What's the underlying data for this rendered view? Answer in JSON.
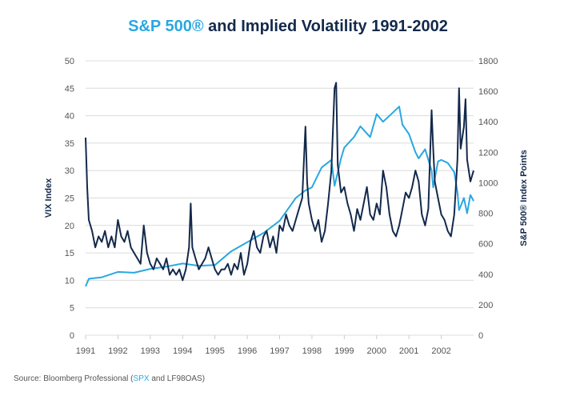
{
  "chart_data": {
    "type": "line",
    "title_highlight": "S&P 500®",
    "title_rest": " and Implied Volatility 1991-2002",
    "ylabel": "VIX Index",
    "y2label": "S&P 500® Index Points",
    "ylim": [
      0,
      50
    ],
    "y2lim": [
      0,
      1800
    ],
    "yticks": [
      0,
      5,
      10,
      15,
      20,
      25,
      30,
      35,
      40,
      45,
      50
    ],
    "y2ticks": [
      0,
      200,
      400,
      600,
      800,
      1000,
      1200,
      1400,
      1600,
      1800
    ],
    "xlim": [
      1991,
      2003
    ],
    "xticks": [
      "1991",
      "1992",
      "1993",
      "1994",
      "1995",
      "1996",
      "1997",
      "1998",
      "1999",
      "2000",
      "2001",
      "2002"
    ],
    "grid": true,
    "colors": {
      "vix": "#13294b",
      "spx": "#29a8e0"
    },
    "series": [
      {
        "name": "VIX",
        "axis": "left",
        "points": [
          [
            1991.0,
            36
          ],
          [
            1991.05,
            27
          ],
          [
            1991.1,
            21
          ],
          [
            1991.2,
            19
          ],
          [
            1991.3,
            16
          ],
          [
            1991.4,
            18
          ],
          [
            1991.5,
            17
          ],
          [
            1991.6,
            19
          ],
          [
            1991.7,
            16
          ],
          [
            1991.8,
            18
          ],
          [
            1991.9,
            16
          ],
          [
            1992.0,
            21
          ],
          [
            1992.1,
            18
          ],
          [
            1992.2,
            17
          ],
          [
            1992.3,
            19
          ],
          [
            1992.4,
            16
          ],
          [
            1992.5,
            15
          ],
          [
            1992.6,
            14
          ],
          [
            1992.7,
            13
          ],
          [
            1992.8,
            20
          ],
          [
            1992.9,
            15
          ],
          [
            1993.0,
            13
          ],
          [
            1993.1,
            12
          ],
          [
            1993.2,
            14
          ],
          [
            1993.3,
            13
          ],
          [
            1993.4,
            12
          ],
          [
            1993.5,
            14
          ],
          [
            1993.6,
            11
          ],
          [
            1993.7,
            12
          ],
          [
            1993.8,
            11
          ],
          [
            1993.9,
            12
          ],
          [
            1994.0,
            10
          ],
          [
            1994.1,
            12
          ],
          [
            1994.2,
            16
          ],
          [
            1994.25,
            24
          ],
          [
            1994.3,
            16
          ],
          [
            1994.4,
            14
          ],
          [
            1994.5,
            12
          ],
          [
            1994.6,
            13
          ],
          [
            1994.7,
            14
          ],
          [
            1994.8,
            16
          ],
          [
            1994.9,
            14
          ],
          [
            1995.0,
            12
          ],
          [
            1995.1,
            11
          ],
          [
            1995.2,
            12
          ],
          [
            1995.3,
            12
          ],
          [
            1995.4,
            13
          ],
          [
            1995.5,
            11
          ],
          [
            1995.6,
            13
          ],
          [
            1995.7,
            12
          ],
          [
            1995.8,
            15
          ],
          [
            1995.9,
            11
          ],
          [
            1996.0,
            13
          ],
          [
            1996.1,
            17
          ],
          [
            1996.2,
            19
          ],
          [
            1996.3,
            16
          ],
          [
            1996.4,
            15
          ],
          [
            1996.5,
            18
          ],
          [
            1996.6,
            19
          ],
          [
            1996.7,
            16
          ],
          [
            1996.8,
            18
          ],
          [
            1996.9,
            15
          ],
          [
            1997.0,
            20
          ],
          [
            1997.1,
            19
          ],
          [
            1997.2,
            22
          ],
          [
            1997.3,
            20
          ],
          [
            1997.4,
            19
          ],
          [
            1997.5,
            21
          ],
          [
            1997.6,
            23
          ],
          [
            1997.7,
            25
          ],
          [
            1997.8,
            38
          ],
          [
            1997.85,
            28
          ],
          [
            1997.9,
            24
          ],
          [
            1998.0,
            21
          ],
          [
            1998.1,
            19
          ],
          [
            1998.2,
            21
          ],
          [
            1998.3,
            17
          ],
          [
            1998.4,
            19
          ],
          [
            1998.5,
            24
          ],
          [
            1998.6,
            30
          ],
          [
            1998.7,
            45
          ],
          [
            1998.75,
            46
          ],
          [
            1998.8,
            31
          ],
          [
            1998.9,
            26
          ],
          [
            1999.0,
            27
          ],
          [
            1999.1,
            24
          ],
          [
            1999.2,
            22
          ],
          [
            1999.3,
            19
          ],
          [
            1999.4,
            23
          ],
          [
            1999.5,
            21
          ],
          [
            1999.6,
            24
          ],
          [
            1999.7,
            27
          ],
          [
            1999.8,
            22
          ],
          [
            1999.9,
            21
          ],
          [
            2000.0,
            24
          ],
          [
            2000.1,
            22
          ],
          [
            2000.2,
            30
          ],
          [
            2000.3,
            27
          ],
          [
            2000.4,
            22
          ],
          [
            2000.5,
            19
          ],
          [
            2000.6,
            18
          ],
          [
            2000.7,
            20
          ],
          [
            2000.8,
            23
          ],
          [
            2000.9,
            26
          ],
          [
            2001.0,
            25
          ],
          [
            2001.1,
            27
          ],
          [
            2001.2,
            30
          ],
          [
            2001.3,
            28
          ],
          [
            2001.4,
            22
          ],
          [
            2001.5,
            20
          ],
          [
            2001.6,
            23
          ],
          [
            2001.7,
            41
          ],
          [
            2001.75,
            34
          ],
          [
            2001.8,
            28
          ],
          [
            2001.9,
            25
          ],
          [
            2002.0,
            22
          ],
          [
            2002.1,
            21
          ],
          [
            2002.2,
            19
          ],
          [
            2002.3,
            18
          ],
          [
            2002.4,
            22
          ],
          [
            2002.5,
            32
          ],
          [
            2002.55,
            45
          ],
          [
            2002.6,
            34
          ],
          [
            2002.7,
            38
          ],
          [
            2002.75,
            43
          ],
          [
            2002.8,
            32
          ],
          [
            2002.9,
            28
          ],
          [
            2003.0,
            30
          ]
        ]
      },
      {
        "name": "SPX",
        "axis": "right",
        "points": [
          [
            1991.0,
            320
          ],
          [
            1991.1,
            370
          ],
          [
            1991.5,
            380
          ],
          [
            1992.0,
            415
          ],
          [
            1992.5,
            410
          ],
          [
            1993.0,
            435
          ],
          [
            1993.5,
            450
          ],
          [
            1994.0,
            470
          ],
          [
            1994.5,
            455
          ],
          [
            1995.0,
            460
          ],
          [
            1995.5,
            550
          ],
          [
            1996.0,
            610
          ],
          [
            1996.5,
            670
          ],
          [
            1997.0,
            750
          ],
          [
            1997.5,
            900
          ],
          [
            1997.8,
            950
          ],
          [
            1998.0,
            970
          ],
          [
            1998.3,
            1100
          ],
          [
            1998.6,
            1150
          ],
          [
            1998.7,
            980
          ],
          [
            1998.9,
            1160
          ],
          [
            1999.0,
            1230
          ],
          [
            1999.3,
            1300
          ],
          [
            1999.5,
            1370
          ],
          [
            1999.8,
            1300
          ],
          [
            2000.0,
            1450
          ],
          [
            2000.2,
            1400
          ],
          [
            2000.5,
            1460
          ],
          [
            2000.7,
            1500
          ],
          [
            2000.8,
            1380
          ],
          [
            2001.0,
            1320
          ],
          [
            2001.2,
            1200
          ],
          [
            2001.3,
            1160
          ],
          [
            2001.5,
            1220
          ],
          [
            2001.7,
            1080
          ],
          [
            2001.75,
            970
          ],
          [
            2001.9,
            1140
          ],
          [
            2002.0,
            1150
          ],
          [
            2002.2,
            1130
          ],
          [
            2002.4,
            1070
          ],
          [
            2002.5,
            940
          ],
          [
            2002.55,
            820
          ],
          [
            2002.7,
            900
          ],
          [
            2002.8,
            800
          ],
          [
            2002.9,
            920
          ],
          [
            2003.0,
            880
          ]
        ]
      }
    ]
  },
  "source": {
    "prefix": "Source: Bloomberg Professional (",
    "link": "SPX",
    "suffix": " and LF98OAS)"
  }
}
